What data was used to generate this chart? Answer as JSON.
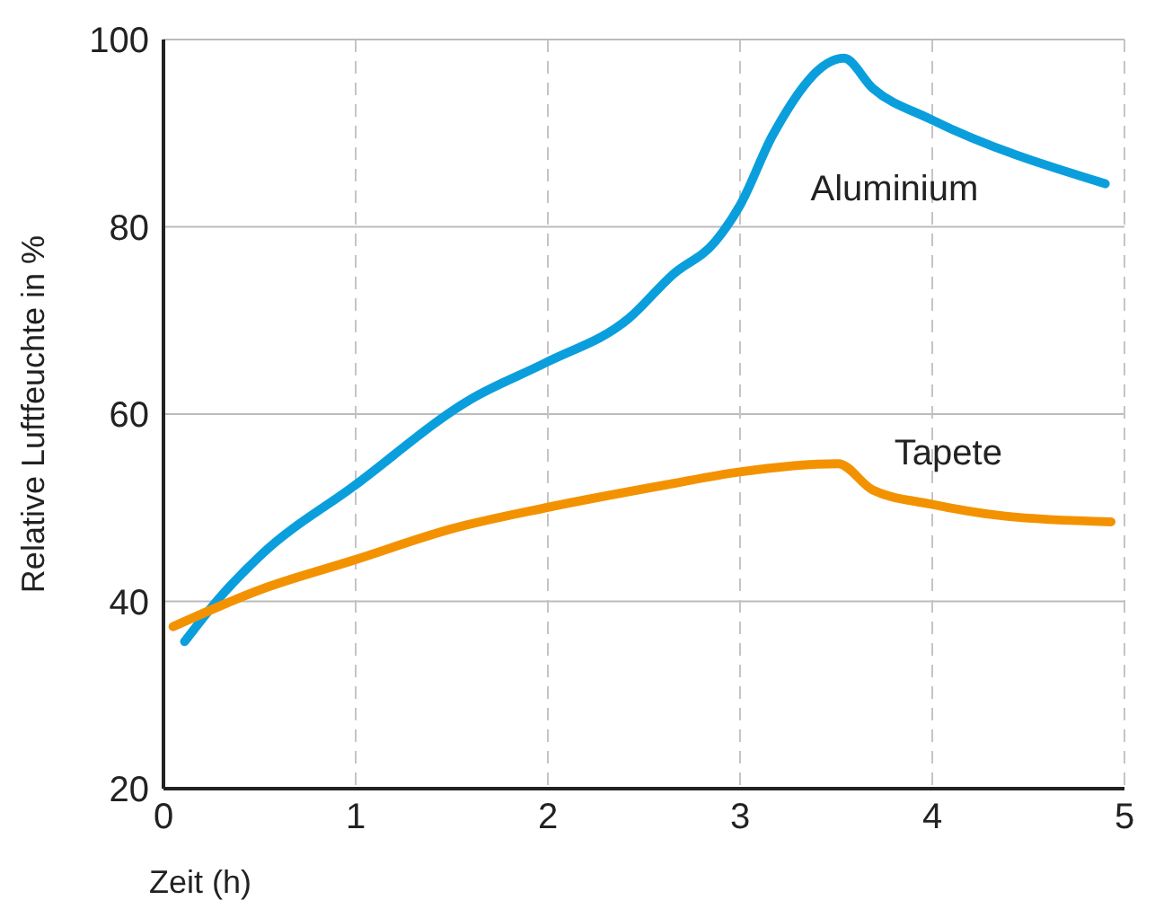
{
  "chart_data": {
    "type": "line",
    "xlabel": "Zeit (h)",
    "ylabel": "Relative Luftfeuchte in %",
    "xlim": [
      0,
      5
    ],
    "xticks": [
      0,
      1,
      2,
      3,
      4,
      5
    ],
    "ylim": [
      20,
      100
    ],
    "yticks": [
      20,
      40,
      60,
      80,
      100
    ],
    "grid": true,
    "legend": false,
    "marker": "none",
    "line_style": "solid",
    "series": [
      {
        "name": "Aluminium",
        "color": "#0a9fdc",
        "x": [
          0.11,
          0.28,
          0.51,
          0.99,
          1.6,
          1.99,
          2.42,
          2.65,
          2.87,
          3.0,
          3.17,
          3.54,
          3.69,
          3.99,
          4.9
        ],
        "values": [
          35.7,
          40.1,
          45,
          52.3,
          61.6,
          65.5,
          70.2,
          74.9,
          78.4,
          82.3,
          89.8,
          98,
          94.8,
          91.5,
          84.6
        ]
      },
      {
        "name": "Tapete",
        "color": "#f39200",
        "x": [
          0.05,
          0.51,
          0.99,
          1.51,
          1.99,
          2.63,
          2.99,
          3.51,
          3.69,
          3.99,
          4.38,
          4.93
        ],
        "values": [
          37.3,
          41.3,
          44.4,
          47.8,
          50,
          52.5,
          53.8,
          54.7,
          51.9,
          50.4,
          49.1,
          48.5
        ]
      }
    ]
  }
}
